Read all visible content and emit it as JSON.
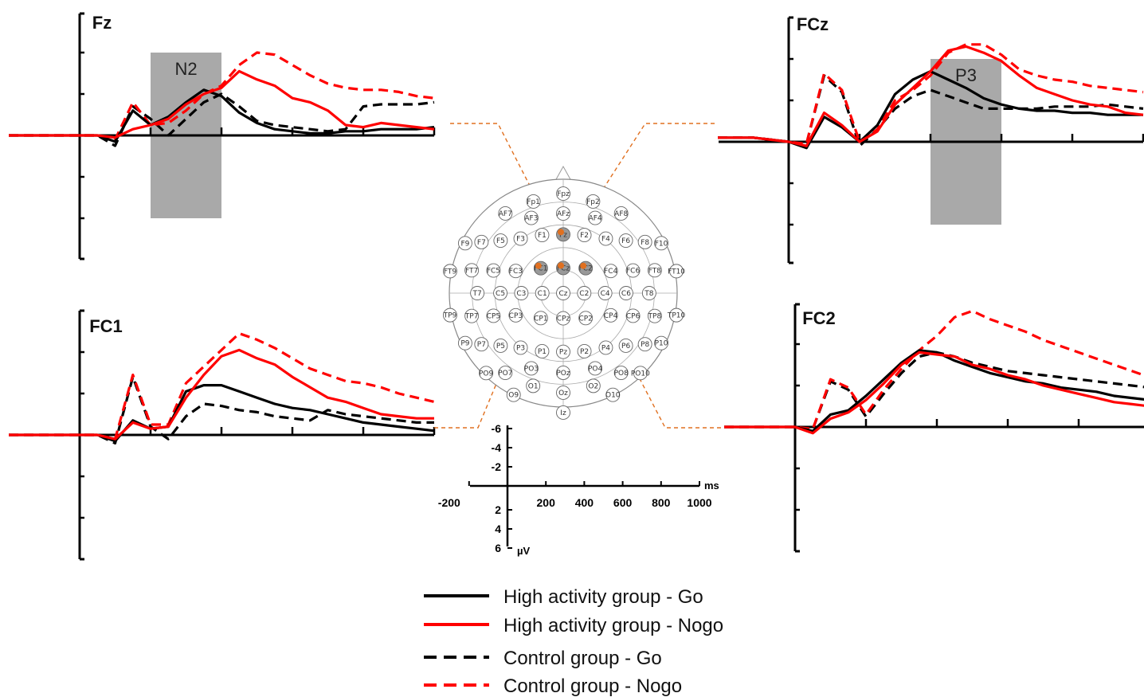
{
  "figure": {
    "colors": {
      "go": "#000000",
      "nogo": "#ff0000",
      "shade": "#a9a9a9",
      "connector": "#e07020",
      "electrode_selected": "#e07020"
    }
  },
  "scale": {
    "x_unit": "ms",
    "y_unit": "µV",
    "x_ticks": [
      "-200",
      "200",
      "400",
      "600",
      "800",
      "1000"
    ],
    "y_ticks_neg": [
      "-6",
      "-4",
      "-2"
    ],
    "y_ticks_pos": [
      "2",
      "4",
      "6"
    ],
    "y_inverted": true
  },
  "legend": {
    "items": [
      {
        "label": "High activity group - Go",
        "color": "#000000",
        "dash": false
      },
      {
        "label": "High activity group - Nogo",
        "color": "#ff0000",
        "dash": false
      },
      {
        "label": "Control group - Go",
        "color": "#000000",
        "dash": true
      },
      {
        "label": "Control group - Nogo",
        "color": "#ff0000",
        "dash": true
      }
    ]
  },
  "chart_data": [
    {
      "type": "line",
      "title": "Fz",
      "window": {
        "label": "N2",
        "xlim": [
          200,
          400
        ]
      },
      "xlim": [
        -200,
        1000
      ],
      "ylim": [
        -6,
        6
      ],
      "x": [
        -200,
        -100,
        -50,
        0,
        50,
        100,
        150,
        200,
        250,
        300,
        350,
        400,
        450,
        500,
        550,
        600,
        650,
        700,
        750,
        800,
        850,
        900,
        950,
        1000
      ],
      "series": [
        {
          "name": "High activity group - Go",
          "values": [
            0,
            0,
            0,
            0,
            0,
            0.3,
            -1.2,
            -0.5,
            -0.9,
            -1.6,
            -2.2,
            -1.9,
            -1.1,
            -0.6,
            -0.3,
            -0.2,
            -0.1,
            -0.1,
            -0.2,
            -0.2,
            -0.3,
            -0.3,
            -0.3,
            -0.4
          ]
        },
        {
          "name": "High activity group - Nogo",
          "values": [
            0,
            0,
            0,
            0,
            0,
            0.1,
            -0.3,
            -0.5,
            -0.8,
            -1.5,
            -2.0,
            -2.3,
            -3.1,
            -2.7,
            -2.4,
            -1.8,
            -1.6,
            -1.2,
            -0.5,
            -0.4,
            -0.6,
            -0.5,
            -0.4,
            -0.3
          ]
        },
        {
          "name": "Control group - Go",
          "values": [
            0,
            0,
            0,
            0,
            0,
            0.5,
            -1.4,
            -0.8,
            0.0,
            -0.8,
            -1.6,
            -2.0,
            -1.4,
            -0.7,
            -0.5,
            -0.4,
            -0.3,
            -0.2,
            -0.3,
            -1.4,
            -1.5,
            -1.5,
            -1.5,
            -1.6
          ]
        },
        {
          "name": "Control group - Nogo",
          "values": [
            0,
            0,
            0,
            0,
            0,
            0.2,
            -1.6,
            -0.5,
            -0.6,
            -1.2,
            -2.0,
            -2.4,
            -3.4,
            -4.0,
            -3.9,
            -3.4,
            -2.9,
            -2.5,
            -2.3,
            -2.2,
            -2.2,
            -2.1,
            -1.9,
            -1.8
          ]
        }
      ]
    },
    {
      "type": "line",
      "title": "FCz",
      "window": {
        "label": "P3",
        "xlim": [
          400,
          600
        ]
      },
      "xlim": [
        -200,
        1000
      ],
      "ylim": [
        -6,
        6
      ],
      "x": [
        -200,
        -100,
        -50,
        0,
        50,
        100,
        150,
        200,
        250,
        300,
        350,
        400,
        450,
        500,
        550,
        600,
        650,
        700,
        750,
        800,
        850,
        900,
        950,
        1000
      ],
      "series": [
        {
          "name": "High activity group - Go",
          "values": [
            -0.2,
            -0.2,
            -0.1,
            0,
            0.3,
            -1.2,
            -0.7,
            0.0,
            -0.8,
            -2.3,
            -3.0,
            -3.4,
            -3.0,
            -2.6,
            -2.1,
            -1.8,
            -1.6,
            -1.5,
            -1.5,
            -1.4,
            -1.4,
            -1.3,
            -1.3,
            -1.3
          ]
        },
        {
          "name": "High activity group - Nogo",
          "values": [
            -0.2,
            -0.2,
            -0.1,
            0,
            0.2,
            -1.4,
            -0.8,
            0.0,
            -0.5,
            -1.8,
            -2.6,
            -3.4,
            -4.4,
            -4.6,
            -4.3,
            -3.9,
            -3.2,
            -2.6,
            -2.3,
            -2.0,
            -1.8,
            -1.7,
            -1.4,
            -1.3
          ]
        },
        {
          "name": "Control group - Go",
          "values": [
            -0.2,
            -0.2,
            -0.1,
            0,
            0.1,
            -3.2,
            -2.4,
            0.2,
            -0.6,
            -1.6,
            -2.2,
            -2.5,
            -2.2,
            -1.9,
            -1.6,
            -1.6,
            -1.6,
            -1.6,
            -1.7,
            -1.7,
            -1.7,
            -1.8,
            -1.7,
            -1.6
          ]
        },
        {
          "name": "Control group - Nogo",
          "values": [
            -0.2,
            -0.2,
            -0.1,
            0,
            0.1,
            -3.3,
            -2.5,
            0.0,
            -0.6,
            -2.0,
            -2.5,
            -3.2,
            -4.3,
            -4.7,
            -4.7,
            -4.2,
            -3.5,
            -3.2,
            -3.0,
            -2.9,
            -2.7,
            -2.6,
            -2.5,
            -2.4
          ]
        }
      ]
    },
    {
      "type": "line",
      "title": "FC1",
      "xlim": [
        -200,
        1000
      ],
      "ylim": [
        -6,
        6
      ],
      "x": [
        -200,
        -100,
        -50,
        0,
        50,
        100,
        150,
        200,
        250,
        300,
        350,
        400,
        450,
        500,
        550,
        600,
        650,
        700,
        750,
        800,
        850,
        900,
        950,
        1000
      ],
      "series": [
        {
          "name": "High activity group - Go",
          "values": [
            0,
            0,
            0,
            0,
            0,
            0.3,
            -0.7,
            -0.3,
            -0.4,
            -2.1,
            -2.4,
            -2.4,
            -2.1,
            -1.8,
            -1.5,
            -1.3,
            -1.2,
            -1.0,
            -0.8,
            -0.6,
            -0.5,
            -0.4,
            -0.3,
            -0.2
          ]
        },
        {
          "name": "High activity group - Nogo",
          "values": [
            0,
            0,
            0,
            0,
            0,
            0.2,
            -0.6,
            -0.3,
            -0.4,
            -1.8,
            -2.9,
            -3.8,
            -4.1,
            -3.7,
            -3.4,
            -2.8,
            -2.3,
            -1.8,
            -1.6,
            -1.3,
            -1.0,
            -0.9,
            -0.8,
            -0.8
          ]
        },
        {
          "name": "Control group - Go",
          "values": [
            0,
            0,
            0,
            0,
            0,
            0.4,
            -2.8,
            -0.4,
            0.2,
            -0.9,
            -1.5,
            -1.4,
            -1.2,
            -1.1,
            -0.9,
            -0.8,
            -0.7,
            -1.2,
            -1.0,
            -0.9,
            -0.8,
            -0.7,
            -0.6,
            -0.6
          ]
        },
        {
          "name": "Control group - Nogo",
          "values": [
            0,
            0,
            0,
            0,
            0,
            0.2,
            -2.9,
            -0.5,
            -0.5,
            -2.5,
            -3.3,
            -4.1,
            -4.9,
            -4.6,
            -4.2,
            -3.7,
            -3.2,
            -2.9,
            -2.6,
            -2.5,
            -2.3,
            -2.0,
            -1.8,
            -1.6
          ]
        }
      ]
    },
    {
      "type": "line",
      "title": "FC2",
      "xlim": [
        -200,
        1000
      ],
      "ylim": [
        -6,
        6
      ],
      "x": [
        -200,
        -100,
        -50,
        0,
        50,
        100,
        150,
        200,
        250,
        300,
        350,
        400,
        450,
        500,
        550,
        600,
        650,
        700,
        750,
        800,
        850,
        900,
        950,
        1000
      ],
      "series": [
        {
          "name": "High activity group - Go",
          "values": [
            0,
            0,
            0,
            0,
            0.2,
            -0.6,
            -0.8,
            -1.5,
            -2.3,
            -3.1,
            -3.7,
            -3.6,
            -3.2,
            -2.9,
            -2.6,
            -2.4,
            -2.2,
            -2.1,
            -1.9,
            -1.8,
            -1.7,
            -1.5,
            -1.4,
            -1.3
          ]
        },
        {
          "name": "High activity group - Nogo",
          "values": [
            0,
            0,
            0,
            0,
            0.3,
            -0.4,
            -0.7,
            -1.3,
            -2.1,
            -3.0,
            -3.6,
            -3.5,
            -3.4,
            -3.0,
            -2.8,
            -2.5,
            -2.3,
            -2.0,
            -1.8,
            -1.6,
            -1.4,
            -1.2,
            -1.1,
            -1.0
          ]
        },
        {
          "name": "Control group - Go",
          "values": [
            0,
            0,
            0,
            0,
            0.1,
            -2.2,
            -1.8,
            -0.5,
            -1.6,
            -2.6,
            -3.4,
            -3.6,
            -3.4,
            -3.1,
            -2.9,
            -2.7,
            -2.6,
            -2.5,
            -2.4,
            -2.3,
            -2.2,
            -2.1,
            -2.0,
            -1.9
          ]
        },
        {
          "name": "Control group - Nogo",
          "values": [
            0,
            0,
            0,
            0,
            0.1,
            -2.3,
            -1.9,
            -0.6,
            -1.8,
            -2.8,
            -3.7,
            -4.4,
            -5.3,
            -5.6,
            -5.2,
            -4.9,
            -4.6,
            -4.2,
            -3.9,
            -3.6,
            -3.3,
            -3.0,
            -2.7,
            -2.4
          ]
        }
      ]
    }
  ],
  "head_map": {
    "selected": [
      "Fz",
      "FCz",
      "FC1",
      "FC2"
    ],
    "electrodes": [
      {
        "id": "Fpz",
        "r": 0.95,
        "t": -90
      },
      {
        "id": "Fp1",
        "r": 0.92,
        "t": -108
      },
      {
        "id": "Fp2",
        "r": 0.92,
        "t": -72
      },
      {
        "id": "AFz",
        "r": 0.76,
        "t": -90
      },
      {
        "id": "AF3",
        "r": 0.78,
        "t": -113
      },
      {
        "id": "AF4",
        "r": 0.78,
        "t": -67
      },
      {
        "id": "AF7",
        "r": 0.94,
        "t": -126
      },
      {
        "id": "AF8",
        "r": 0.94,
        "t": -54
      },
      {
        "id": "Fz",
        "r": 0.56,
        "t": -90
      },
      {
        "id": "F1",
        "r": 0.59,
        "t": -110
      },
      {
        "id": "F2",
        "r": 0.59,
        "t": -70
      },
      {
        "id": "F3",
        "r": 0.66,
        "t": -128
      },
      {
        "id": "F4",
        "r": 0.66,
        "t": -52
      },
      {
        "id": "F5",
        "r": 0.78,
        "t": -140
      },
      {
        "id": "F6",
        "r": 0.78,
        "t": -40
      },
      {
        "id": "F7",
        "r": 0.92,
        "t": -148
      },
      {
        "id": "F8",
        "r": 0.92,
        "t": -32
      },
      {
        "id": "F9",
        "r": 1.05,
        "t": -153
      },
      {
        "id": "F10",
        "r": 1.05,
        "t": -27
      },
      {
        "id": "FCz",
        "r": 0.24,
        "t": -90
      },
      {
        "id": "FC1",
        "r": 0.32,
        "t": -132
      },
      {
        "id": "FC2",
        "r": 0.32,
        "t": -48
      },
      {
        "id": "FC3",
        "r": 0.5,
        "t": -155
      },
      {
        "id": "FC4",
        "r": 0.5,
        "t": -25
      },
      {
        "id": "FC5",
        "r": 0.7,
        "t": -162
      },
      {
        "id": "FC6",
        "r": 0.7,
        "t": -18
      },
      {
        "id": "FT7",
        "r": 0.9,
        "t": -166
      },
      {
        "id": "FT8",
        "r": 0.9,
        "t": -14
      },
      {
        "id": "FT9",
        "r": 1.1,
        "t": -169
      },
      {
        "id": "FT10",
        "r": 1.1,
        "t": -11
      },
      {
        "id": "Cz",
        "r": 0.0,
        "t": 0
      },
      {
        "id": "C1",
        "r": 0.2,
        "t": 180
      },
      {
        "id": "C2",
        "r": 0.2,
        "t": 0
      },
      {
        "id": "C3",
        "r": 0.4,
        "t": 180
      },
      {
        "id": "C4",
        "r": 0.4,
        "t": 0
      },
      {
        "id": "C5",
        "r": 0.6,
        "t": 180
      },
      {
        "id": "C6",
        "r": 0.6,
        "t": 0
      },
      {
        "id": "T7",
        "r": 0.82,
        "t": 180
      },
      {
        "id": "T8",
        "r": 0.82,
        "t": 0
      },
      {
        "id": "CPz",
        "r": 0.24,
        "t": 90
      },
      {
        "id": "CP1",
        "r": 0.32,
        "t": 132
      },
      {
        "id": "CP2",
        "r": 0.32,
        "t": 48
      },
      {
        "id": "CP3",
        "r": 0.5,
        "t": 155
      },
      {
        "id": "CP4",
        "r": 0.5,
        "t": 25
      },
      {
        "id": "CP5",
        "r": 0.7,
        "t": 162
      },
      {
        "id": "CP6",
        "r": 0.7,
        "t": 18
      },
      {
        "id": "TP7",
        "r": 0.9,
        "t": 166
      },
      {
        "id": "TP8",
        "r": 0.9,
        "t": 14
      },
      {
        "id": "TP9",
        "r": 1.1,
        "t": 169
      },
      {
        "id": "TP10",
        "r": 1.1,
        "t": 11
      },
      {
        "id": "Pz",
        "r": 0.56,
        "t": 90
      },
      {
        "id": "P1",
        "r": 0.59,
        "t": 110
      },
      {
        "id": "P2",
        "r": 0.59,
        "t": 70
      },
      {
        "id": "P3",
        "r": 0.66,
        "t": 128
      },
      {
        "id": "P4",
        "r": 0.66,
        "t": 52
      },
      {
        "id": "P5",
        "r": 0.78,
        "t": 140
      },
      {
        "id": "P6",
        "r": 0.78,
        "t": 40
      },
      {
        "id": "P7",
        "r": 0.92,
        "t": 148
      },
      {
        "id": "P8",
        "r": 0.92,
        "t": 32
      },
      {
        "id": "P9",
        "r": 1.05,
        "t": 153
      },
      {
        "id": "P10",
        "r": 1.05,
        "t": 27
      },
      {
        "id": "POz",
        "r": 0.76,
        "t": 90
      },
      {
        "id": "PO3",
        "r": 0.78,
        "t": 113
      },
      {
        "id": "PO4",
        "r": 0.78,
        "t": 67
      },
      {
        "id": "PO7",
        "r": 0.94,
        "t": 126
      },
      {
        "id": "PO8",
        "r": 0.94,
        "t": 54
      },
      {
        "id": "PO9",
        "r": 1.06,
        "t": 134
      },
      {
        "id": "PO10",
        "r": 1.06,
        "t": 46
      },
      {
        "id": "O1",
        "r": 0.93,
        "t": 108
      },
      {
        "id": "O2",
        "r": 0.93,
        "t": 72
      },
      {
        "id": "Oz",
        "r": 0.95,
        "t": 90
      },
      {
        "id": "O9",
        "r": 1.08,
        "t": 116
      },
      {
        "id": "O10",
        "r": 1.08,
        "t": 64
      },
      {
        "id": "Iz",
        "r": 1.14,
        "t": 90
      }
    ]
  }
}
